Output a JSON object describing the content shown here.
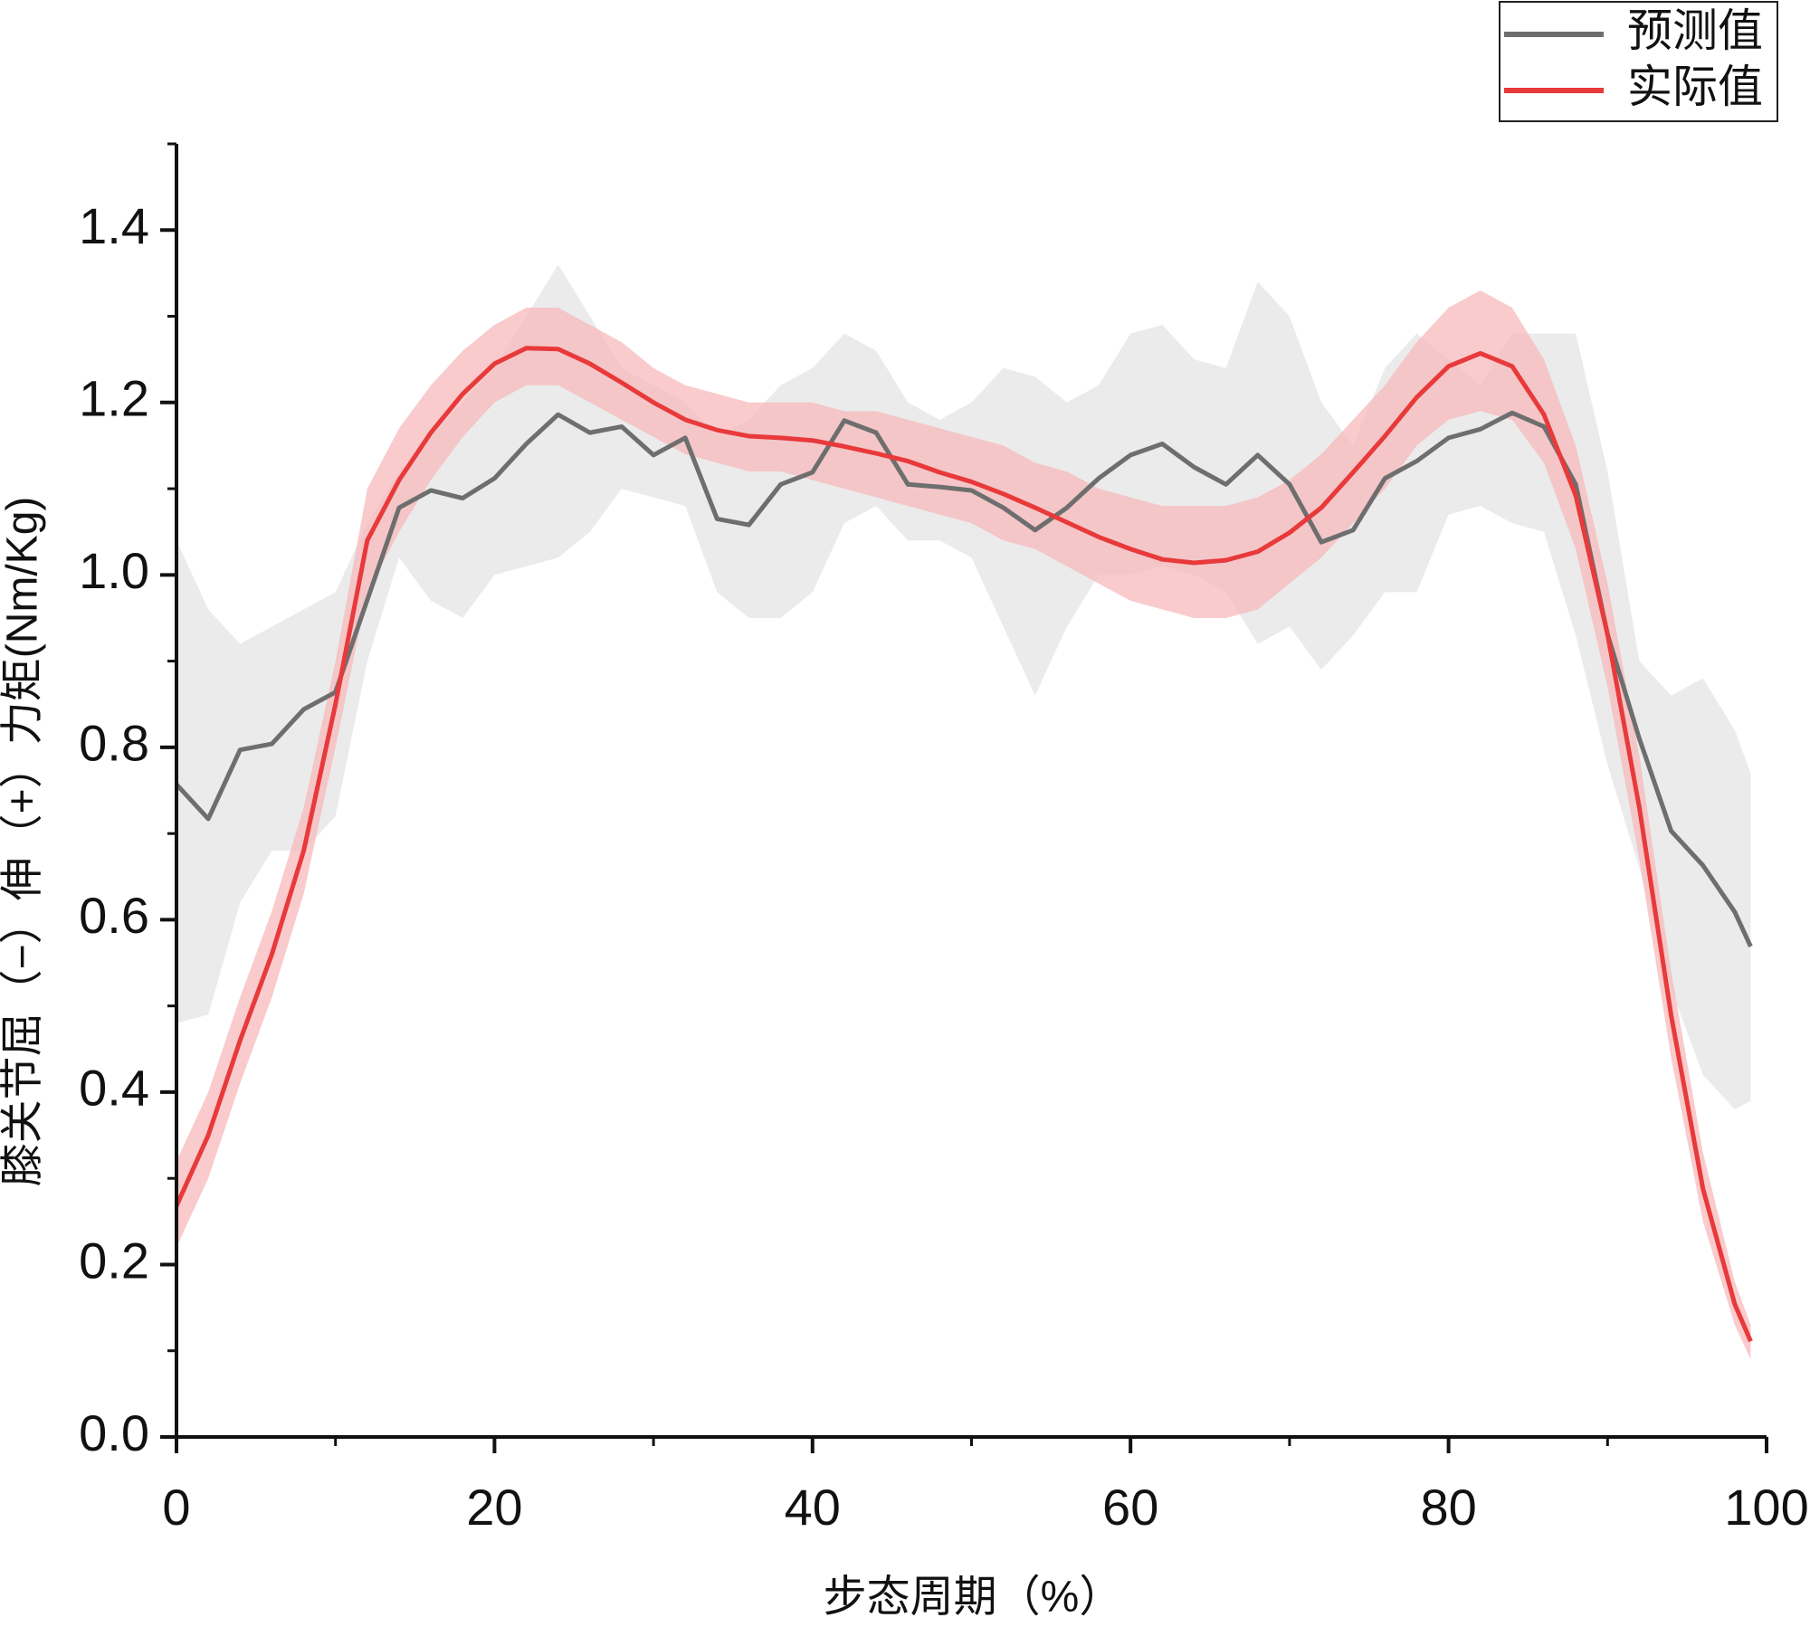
{
  "chart_data": {
    "type": "line",
    "x_label": "步态周期（%）",
    "y_label": "膝关节屈（−）伸（+）力矩(Nm/Kg)",
    "xlim": [
      0,
      100
    ],
    "xticks": [
      0,
      20,
      40,
      60,
      80,
      100
    ],
    "ylim": [
      0,
      1.5
    ],
    "yticks": [
      {
        "value": 0,
        "label": "0.0"
      },
      0.2,
      0.4,
      0.6,
      0.8,
      {
        "value": 1,
        "label": "1.0"
      },
      1.2,
      1.4
    ],
    "legend": "top-right",
    "x": [
      0,
      2,
      4,
      6,
      8,
      10,
      12,
      14,
      16,
      18,
      20,
      22,
      24,
      26,
      28,
      30,
      32,
      34,
      36,
      38,
      40,
      42,
      44,
      46,
      48,
      50,
      52,
      54,
      56,
      58,
      60,
      62,
      64,
      66,
      68,
      70,
      72,
      74,
      76,
      78,
      80,
      82,
      84,
      86,
      88,
      90,
      92,
      94,
      96,
      98,
      99
    ],
    "series": [
      {
        "name": "预测值",
        "color": "#6e6e6e",
        "band_color": "#e4e4e4",
        "values": [
          0.757,
          0.717,
          0.797,
          0.804,
          0.844,
          0.864,
          0.971,
          1.078,
          1.098,
          1.089,
          1.112,
          1.152,
          1.186,
          1.165,
          1.172,
          1.139,
          1.159,
          1.065,
          1.058,
          1.105,
          1.119,
          1.179,
          1.165,
          1.105,
          1.102,
          1.098,
          1.078,
          1.052,
          1.078,
          1.112,
          1.139,
          1.152,
          1.125,
          1.105,
          1.139,
          1.105,
          1.038,
          1.052,
          1.112,
          1.132,
          1.159,
          1.169,
          1.188,
          1.172,
          1.105,
          0.931,
          0.81,
          0.703,
          0.663,
          0.609,
          0.569
        ],
        "upper": [
          1.04,
          0.96,
          0.92,
          0.94,
          0.96,
          0.98,
          1.06,
          1.12,
          1.16,
          1.2,
          1.24,
          1.3,
          1.36,
          1.3,
          1.24,
          1.22,
          1.2,
          1.16,
          1.18,
          1.22,
          1.24,
          1.28,
          1.26,
          1.2,
          1.18,
          1.2,
          1.24,
          1.23,
          1.2,
          1.22,
          1.28,
          1.29,
          1.25,
          1.24,
          1.34,
          1.3,
          1.2,
          1.15,
          1.24,
          1.28,
          1.25,
          1.22,
          1.28,
          1.28,
          1.28,
          1.12,
          0.9,
          0.86,
          0.88,
          0.82,
          0.77
        ],
        "lower": [
          0.48,
          0.49,
          0.62,
          0.68,
          0.68,
          0.72,
          0.9,
          1.02,
          0.97,
          0.95,
          1.0,
          1.01,
          1.02,
          1.05,
          1.1,
          1.09,
          1.08,
          0.98,
          0.95,
          0.95,
          0.98,
          1.06,
          1.08,
          1.04,
          1.04,
          1.02,
          0.94,
          0.86,
          0.94,
          1.0,
          1.0,
          1.01,
          1.0,
          0.98,
          0.92,
          0.94,
          0.89,
          0.93,
          0.98,
          0.98,
          1.07,
          1.08,
          1.06,
          1.05,
          0.93,
          0.78,
          0.66,
          0.52,
          0.42,
          0.38,
          0.39
        ]
      },
      {
        "name": "实际值",
        "color": "#e8393b",
        "band_color": "#f7b9bb",
        "values": [
          0.268,
          0.35,
          0.46,
          0.56,
          0.68,
          0.85,
          1.04,
          1.11,
          1.165,
          1.21,
          1.245,
          1.263,
          1.262,
          1.245,
          1.223,
          1.2,
          1.18,
          1.168,
          1.161,
          1.159,
          1.156,
          1.149,
          1.141,
          1.132,
          1.119,
          1.108,
          1.094,
          1.078,
          1.061,
          1.044,
          1.03,
          1.018,
          1.014,
          1.017,
          1.027,
          1.049,
          1.078,
          1.119,
          1.161,
          1.206,
          1.242,
          1.257,
          1.242,
          1.186,
          1.092,
          0.931,
          0.73,
          0.489,
          0.288,
          0.154,
          0.111
        ],
        "upper": [
          0.32,
          0.4,
          0.51,
          0.61,
          0.73,
          0.9,
          1.1,
          1.17,
          1.22,
          1.26,
          1.29,
          1.31,
          1.31,
          1.29,
          1.27,
          1.24,
          1.22,
          1.21,
          1.2,
          1.2,
          1.2,
          1.19,
          1.19,
          1.18,
          1.17,
          1.16,
          1.15,
          1.13,
          1.12,
          1.1,
          1.09,
          1.08,
          1.08,
          1.08,
          1.09,
          1.11,
          1.14,
          1.18,
          1.22,
          1.27,
          1.31,
          1.33,
          1.31,
          1.25,
          1.15,
          0.99,
          0.79,
          0.54,
          0.33,
          0.18,
          0.13
        ],
        "lower": [
          0.22,
          0.3,
          0.41,
          0.51,
          0.63,
          0.8,
          0.98,
          1.05,
          1.11,
          1.16,
          1.2,
          1.22,
          1.22,
          1.2,
          1.18,
          1.16,
          1.14,
          1.13,
          1.12,
          1.12,
          1.11,
          1.1,
          1.09,
          1.08,
          1.07,
          1.06,
          1.04,
          1.03,
          1.01,
          0.99,
          0.97,
          0.96,
          0.95,
          0.95,
          0.96,
          0.99,
          1.02,
          1.06,
          1.1,
          1.15,
          1.18,
          1.19,
          1.18,
          1.13,
          1.03,
          0.87,
          0.67,
          0.44,
          0.25,
          0.13,
          0.09
        ]
      }
    ]
  }
}
